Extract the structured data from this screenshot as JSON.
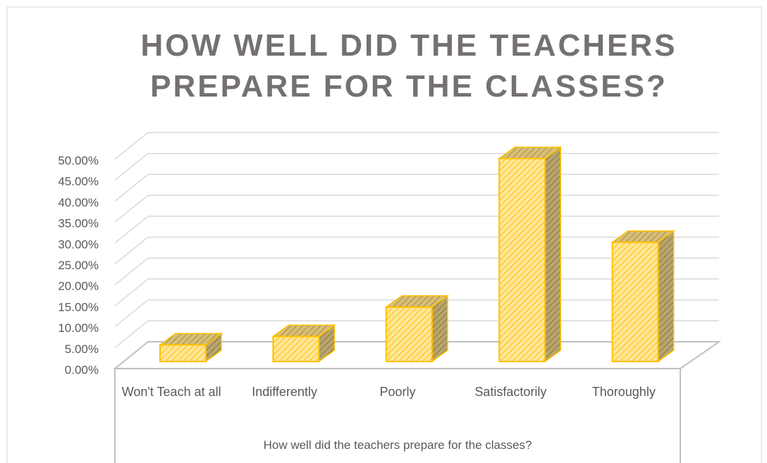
{
  "chart_data": {
    "type": "bar3d",
    "title": "HOW WELL DID THE TEACHERS PREPARE FOR THE CLASSES?",
    "x_label": "How well did the teachers prepare for the classes?",
    "categories": [
      "Won't Teach at all",
      "Indifferently",
      "Poorly",
      "Satisfactorily",
      "Thoroughly"
    ],
    "values": [
      4,
      6,
      13,
      48.5,
      28.5
    ],
    "color": "#ffe699",
    "edge_color": "#ffc000",
    "ylim": [
      0,
      50
    ],
    "yticks": [
      {
        "value": 0,
        "label": "0.00%"
      },
      {
        "value": 5,
        "label": "5.00%"
      },
      {
        "value": 10,
        "label": "10.00%"
      },
      {
        "value": 15,
        "label": "15.00%"
      },
      {
        "value": 20,
        "label": "20.00%"
      },
      {
        "value": 25,
        "label": "25.00%"
      },
      {
        "value": 30,
        "label": "30.00%"
      },
      {
        "value": 35,
        "label": "35.00%"
      },
      {
        "value": 40,
        "label": "40.00%"
      },
      {
        "value": 45,
        "label": "45.00%"
      },
      {
        "value": 50,
        "label": "50.00%"
      }
    ],
    "grid": true
  }
}
